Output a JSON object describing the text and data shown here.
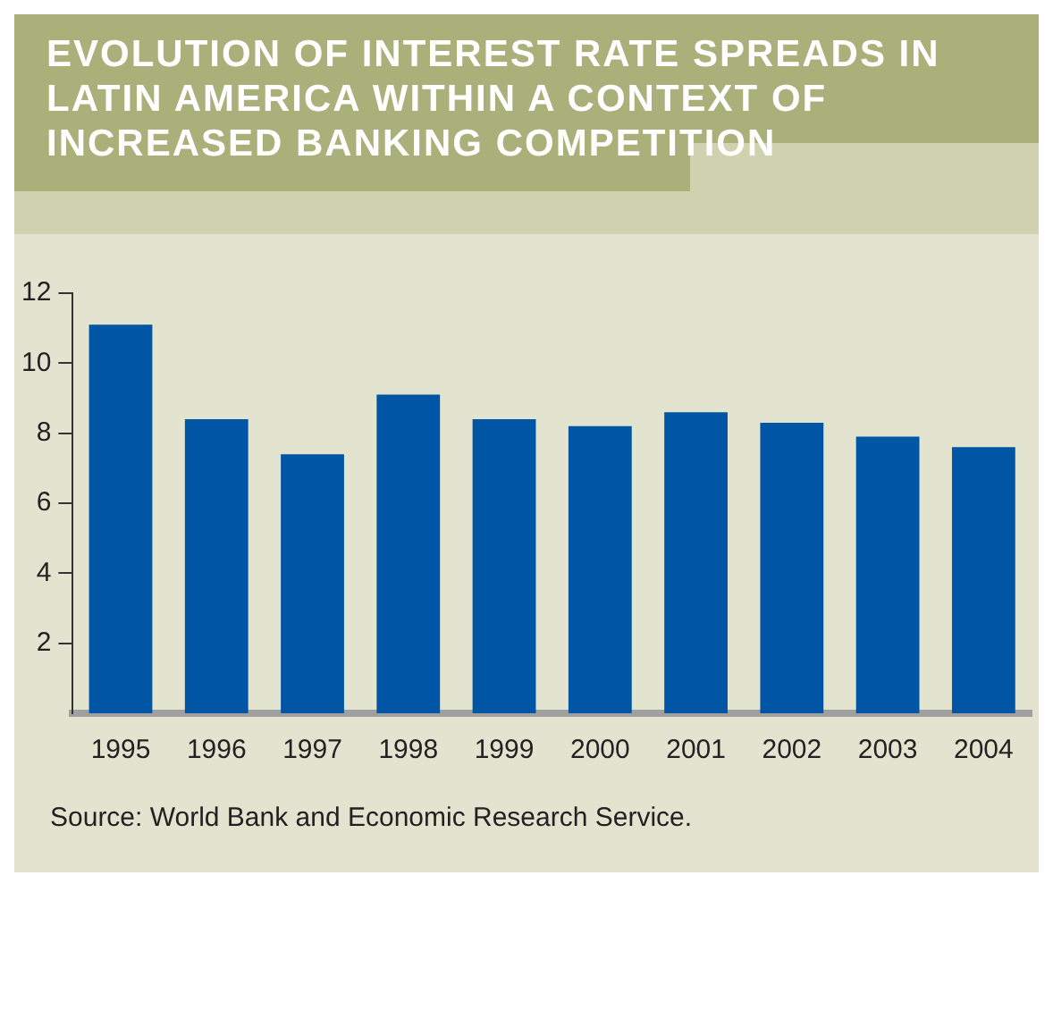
{
  "chart_data": {
    "type": "bar",
    "title": "EVOLUTION OF INTEREST RATE SPREADS IN LATIN AMERICA WITHIN A CONTEXT OF INCREASED BANKING COMPETITION",
    "categories": [
      "1995",
      "1996",
      "1997",
      "1998",
      "1999",
      "2000",
      "2001",
      "2002",
      "2003",
      "2004"
    ],
    "values": [
      11.1,
      8.4,
      7.4,
      9.1,
      8.4,
      8.2,
      8.6,
      8.3,
      7.9,
      7.6
    ],
    "color": "#0055a4",
    "ylim": [
      0,
      12
    ],
    "yticks": [
      2,
      4,
      6,
      8,
      10,
      12
    ],
    "grid": false,
    "legend": false,
    "annotations": [
      "Source: World Bank and Economic Research Service."
    ]
  }
}
